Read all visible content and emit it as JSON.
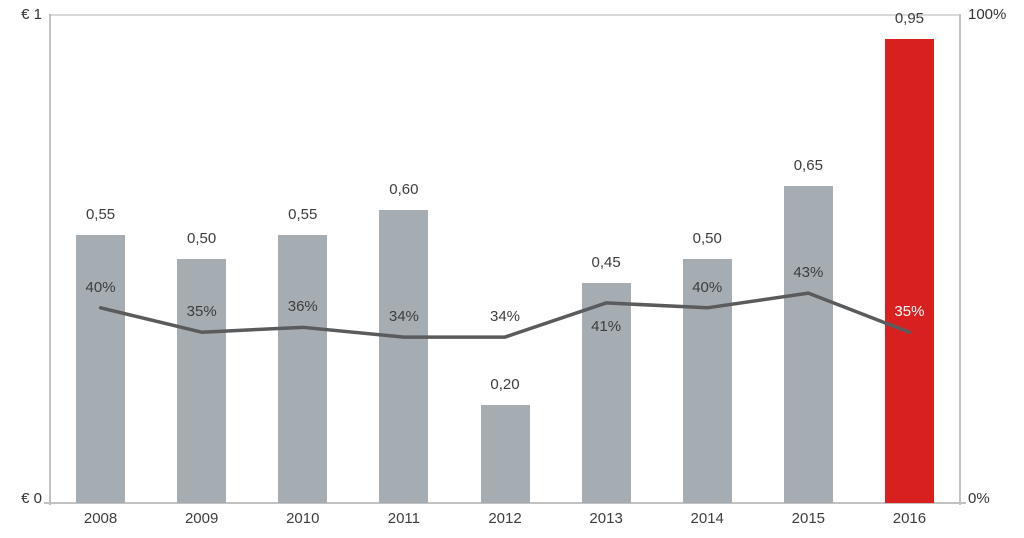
{
  "chart_data": {
    "type": "combo",
    "title": "",
    "categories": [
      "2008",
      "2009",
      "2010",
      "2011",
      "2012",
      "2013",
      "2014",
      "2015",
      "2016"
    ],
    "series": [
      {
        "name": "value-eur-bars",
        "type": "bar",
        "values": [
          0.55,
          0.5,
          0.55,
          0.6,
          0.2,
          0.45,
          0.5,
          0.65,
          0.95
        ],
        "labels": [
          "0,55",
          "0,50",
          "0,55",
          "0,60",
          "0,20",
          "0,45",
          "0,50",
          "0,65",
          "0,95"
        ],
        "bar_colors": [
          "#a6adb2",
          "#a6adb2",
          "#a6adb2",
          "#a6adb2",
          "#a6adb2",
          "#a6adb2",
          "#a6adb2",
          "#a6adb2",
          "#d8211f"
        ]
      },
      {
        "name": "percentage-line",
        "type": "line",
        "values": [
          40,
          35,
          36,
          34,
          34,
          41,
          40,
          43,
          35
        ],
        "labels": [
          "40%",
          "35%",
          "36%",
          "34%",
          "34%",
          "41%",
          "40%",
          "43%",
          "35%"
        ],
        "label_positions": [
          "above",
          "above",
          "above",
          "above",
          "above",
          "below",
          "above",
          "above",
          "above"
        ],
        "label_colors": [
          "#3d3d3d",
          "#3d3d3d",
          "#3d3d3d",
          "#3d3d3d",
          "#3d3d3d",
          "#3d3d3d",
          "#3d3d3d",
          "#3d3d3d",
          "#ffffff"
        ],
        "color": "#5a5b5d"
      }
    ],
    "axes": {
      "left": {
        "top_label": "€ 1",
        "bottom_label": "€ 0",
        "range": [
          0,
          1
        ]
      },
      "right": {
        "top_label": "100%",
        "bottom_label": "0%",
        "range": [
          0,
          100
        ]
      }
    },
    "legend": "none",
    "grid": "top-border-only"
  },
  "colors": {
    "bar_gray": "#a6adb2",
    "bar_red": "#d8211f",
    "line": "#5a5b5d",
    "axis": "#c2c2c2",
    "top_grid": "#d9d9d9",
    "text": "#3d3d3d"
  }
}
